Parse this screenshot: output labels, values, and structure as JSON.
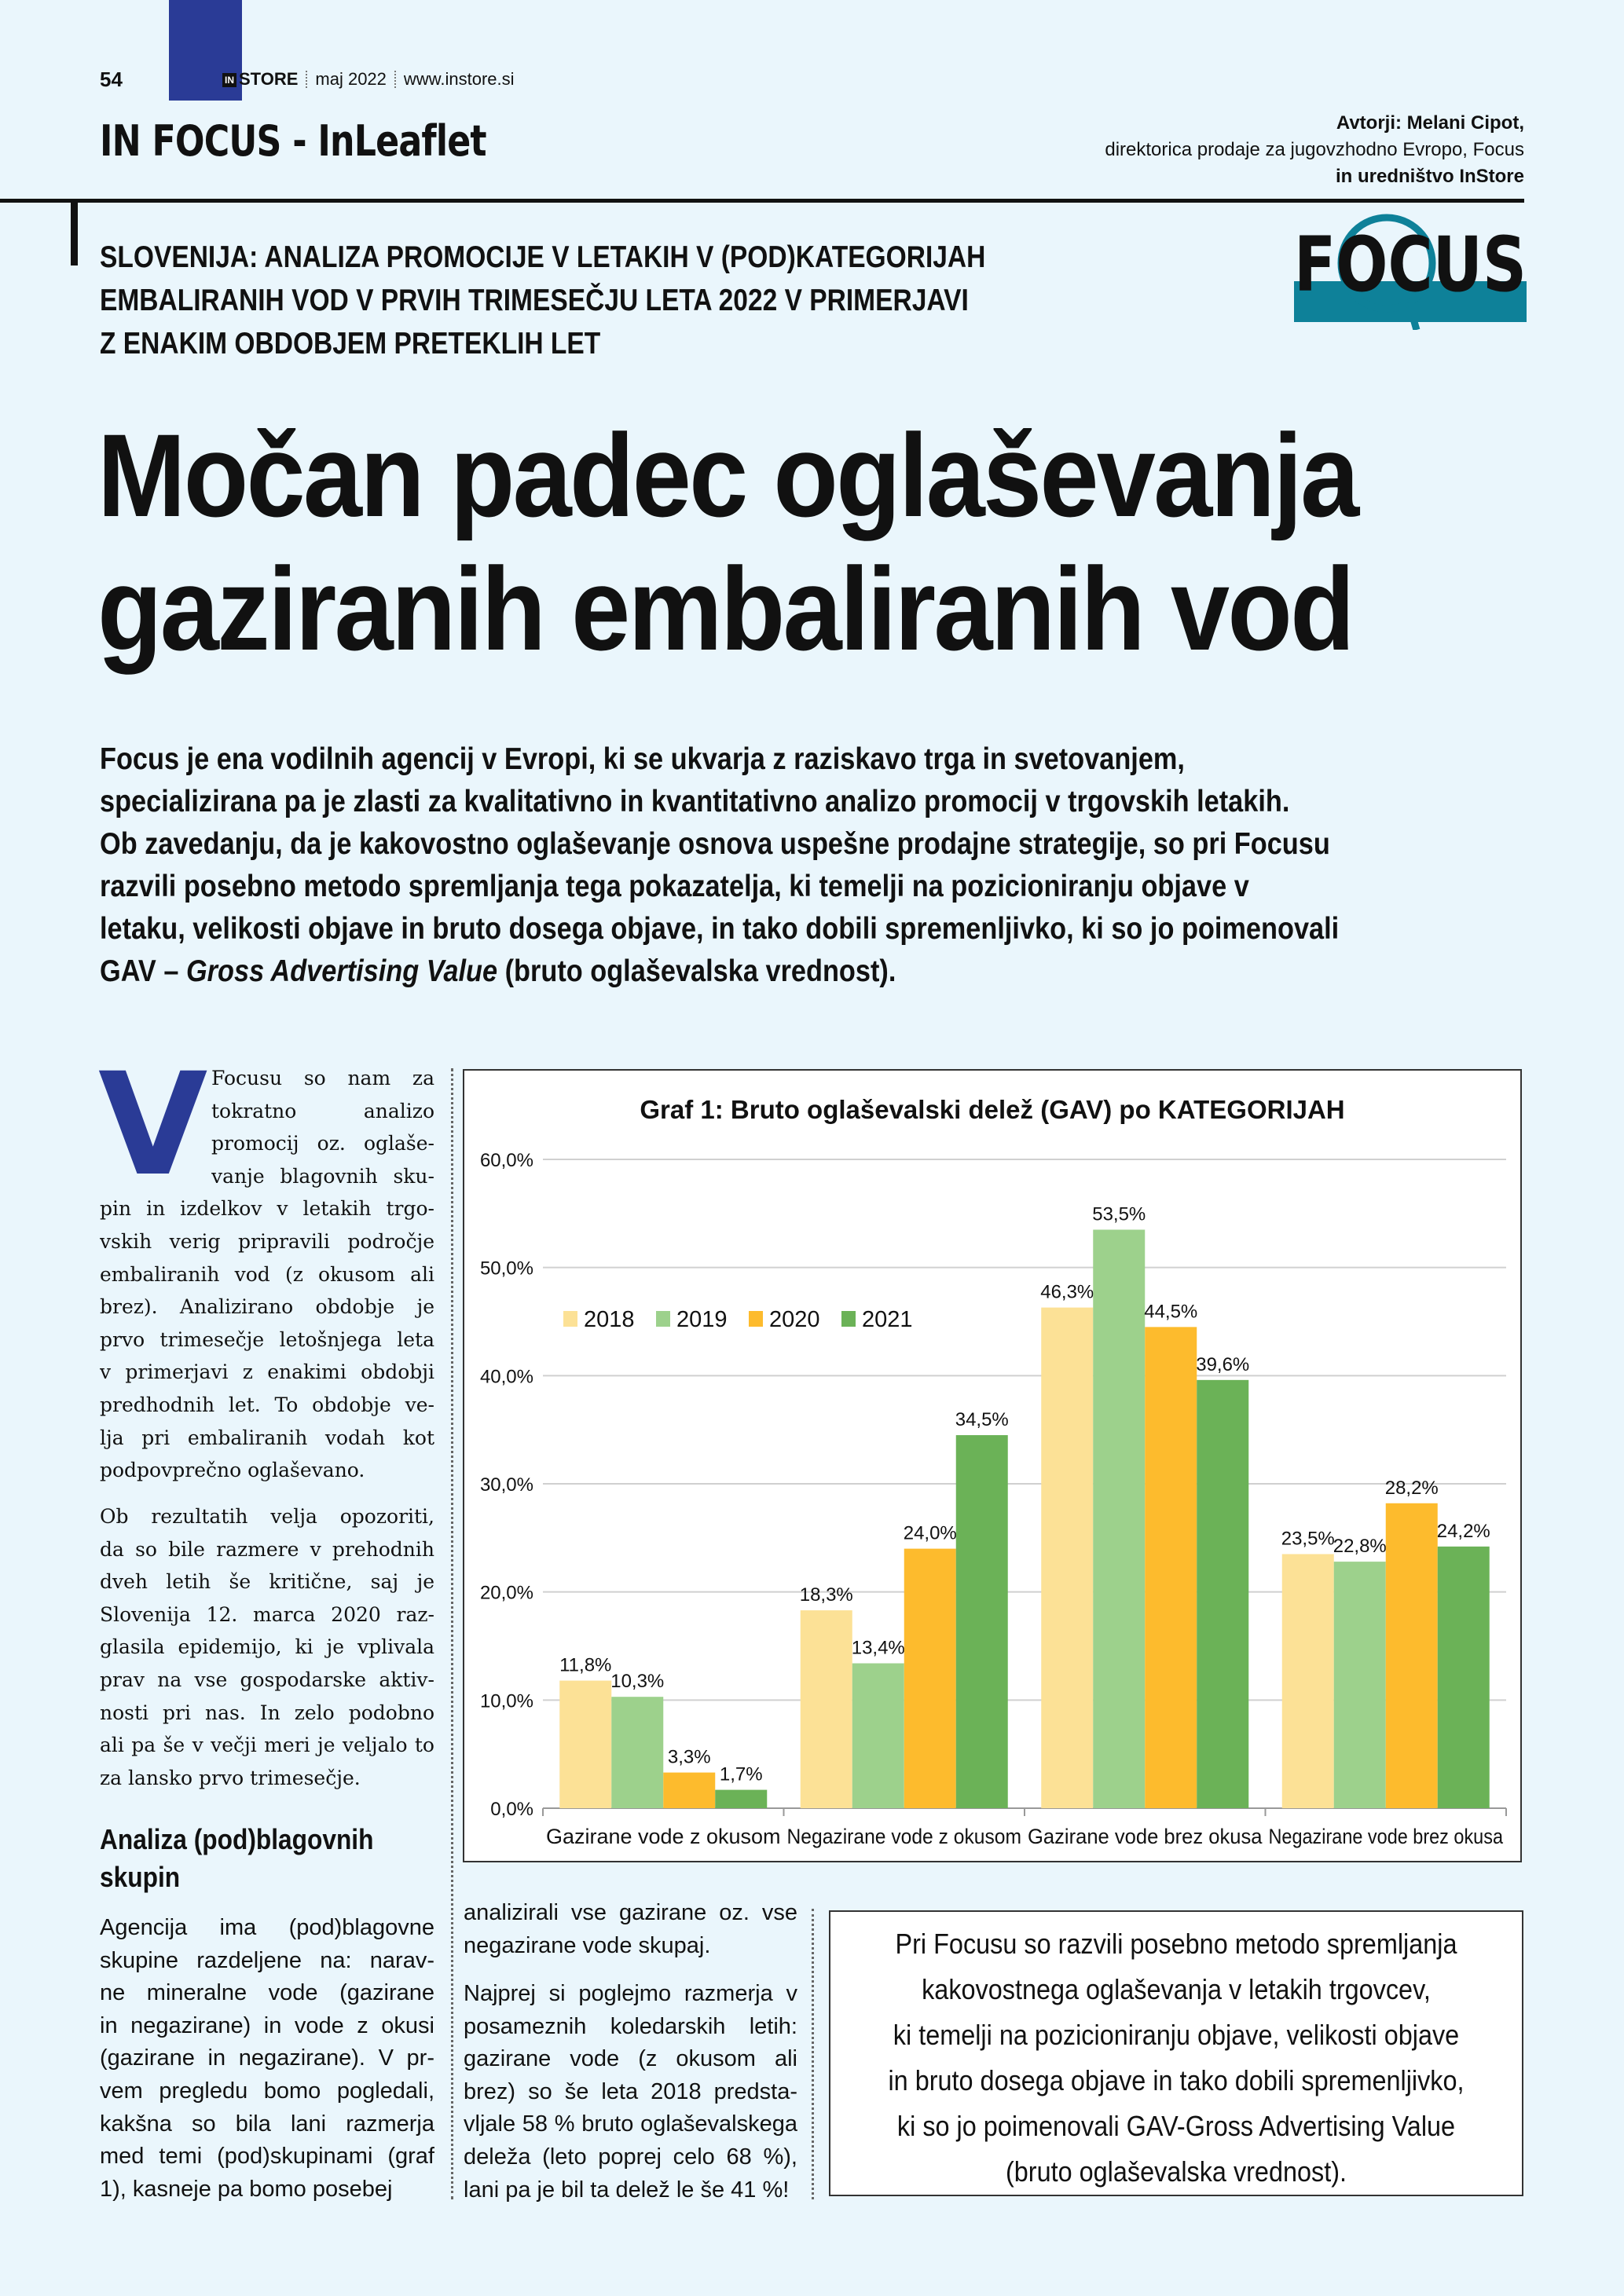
{
  "header": {
    "page_number": "54",
    "publication": "STORE",
    "publication_prefix": "IN",
    "issue": "maj 2022",
    "website": "www.instore.si",
    "section": "IN FOCUS - InLeaflet",
    "authors_line1": "Avtorji: Melani Cipot,",
    "authors_line2": "direktorica prodaje za jugovzhodno Evropo, Focus",
    "authors_line3": "in uredništvo InStore",
    "logo_text": "FOCUS"
  },
  "colors": {
    "background": "#EAF6FC",
    "accent_blue": "#2A3B96",
    "logo_teal": "#0E8199"
  },
  "article": {
    "kicker": [
      "SLOVENIJA: ANALIZA PROMOCIJE V LETAKIH V (POD)KATEGORIJAH",
      "EMBALIRANIH VOD V PRVIH TRIMESEČJU LETA 2022 V PRIMERJAVI",
      "Z ENAKIM OBDOBJEM PRETEKLIH LET"
    ],
    "headline": [
      "Močan padec oglaševanja",
      "gaziranih embaliranih vod"
    ],
    "intro": [
      "Focus je ena vodilnih agencij v Evropi, ki se ukvarja z raziskavo trga in svetovanjem,",
      "specializirana pa je zlasti za kvalitativno in kvantitativno analizo promocij v trgovskih letakih.",
      "Ob zavedanju, da je kakovostno oglaševanje osnova uspešne prodajne strategije, so pri Focusu",
      "razvili posebno metodo spremljanja tega pokazatelja, ki temelji na pozicioniranju objave v",
      "letaku, velikosti objave in bruto dosega objave, in tako dobili spremenljivko, ki so jo poimenovali"
    ],
    "intro_last_prefix": "GAV – ",
    "intro_last_italic": "Gross Advertising Value",
    "intro_last_suffix": " (bruto oglaševalska vrednost).",
    "drop_cap": "V",
    "col1_p1": [
      "Focusu so nam za",
      "tokratno analizo",
      "promocij oz. oglaše-",
      "vanje blagovnih sku-",
      "pin in izdelkov v letakih trgo-",
      "vskih verig pripravili področje",
      "embaliranih vod (z okusom ali",
      "brez). Analizirano obdobje je",
      "prvo trimesečje letošnjega leta",
      "v primerjavi z enakimi obdobji",
      "predhodnih let. To obdobje ve-",
      "lja pri embaliranih vodah kot",
      "podpovprečno oglaševano."
    ],
    "col1_p2": [
      "Ob rezultatih velja opozoriti,",
      "da so bile razmere v prehodnih",
      "dveh letih še kritične, saj je",
      "Slovenija 12. marca 2020 raz-",
      "glasila epidemijo, ki je vplivala",
      "prav na vse gospodarske aktiv-",
      "nosti pri nas. In zelo podobno",
      "ali pa še v večji meri je veljalo to",
      "za lansko prvo trimesečje."
    ],
    "subheading": [
      "Analiza (pod)blagovnih",
      "skupin"
    ],
    "col1_p3": [
      "Agencija ima (pod)blagovne",
      "skupine razdeljene na: narav-",
      "ne mineralne vode (gazirane",
      "in negazirane) in vode z okusi",
      "(gazirane in negazirane). V pr-",
      "vem pregledu bomo pogledali,",
      "kakšna so bila lani razmerja",
      "med temi (pod)skupinami (graf",
      "1), kasneje pa bomo posebej"
    ],
    "col2_p1": [
      "analizirali vse gazirane oz. vse",
      "negazirane vode skupaj."
    ],
    "col2_p2": [
      "Najprej si poglejmo razmerja v",
      "posameznih koledarskih letih:",
      "gazirane vode (z okusom ali",
      "brez) so še leta 2018 predsta-",
      "vljale 58 % bruto oglaševalskega",
      "deleža (leto poprej celo 68 %),",
      "lani pa je bil ta delež le še 41 %!"
    ],
    "quote": [
      "Pri Focusu so razvili posebno metodo spremljanja",
      "kakovostnega oglaševanja v letakih trgovcev,",
      "ki temelji na pozicioniranju objave, velikosti objave",
      "in bruto dosega objave in tako dobili spremenljivko,",
      "ki so jo poimenovali GAV-Gross Advertising Value",
      "(bruto oglaševalska vrednost)."
    ]
  },
  "chart_data": {
    "type": "bar",
    "title": "Graf 1: Bruto oglaševalski delež (GAV) po KATEGORIJAH",
    "categories": [
      "Gazirane vode z okusom",
      "Negazirane vode z okusom",
      "Gazirane vode brez okusa",
      "Negazirane vode brez okusa"
    ],
    "series": [
      {
        "name": "2018",
        "color": "#FCE196",
        "values": [
          11.8,
          18.3,
          46.3,
          23.5
        ],
        "labels": [
          "11,8%",
          "18,3%",
          "46,3%",
          "23,5%"
        ]
      },
      {
        "name": "2019",
        "color": "#9DD18C",
        "values": [
          10.3,
          13.4,
          53.5,
          22.8
        ],
        "labels": [
          "10,3%",
          "13,4%",
          "53,5%",
          "22,8%"
        ]
      },
      {
        "name": "2020",
        "color": "#FDBB2D",
        "values": [
          3.3,
          24.0,
          44.5,
          28.2
        ],
        "labels": [
          "3,3%",
          "24,0%",
          "44,5%",
          "28,2%"
        ]
      },
      {
        "name": "2021",
        "color": "#6BB257",
        "values": [
          1.7,
          34.5,
          39.6,
          24.2
        ],
        "labels": [
          "1,7%",
          "34,5%",
          "39,6%",
          "24,2%"
        ]
      }
    ],
    "yticks": [
      "0,0%",
      "10,0%",
      "20,0%",
      "30,0%",
      "40,0%",
      "50,0%",
      "60,0%"
    ],
    "ylim": [
      0,
      60
    ],
    "grid": true,
    "legend_position": "top-left"
  }
}
